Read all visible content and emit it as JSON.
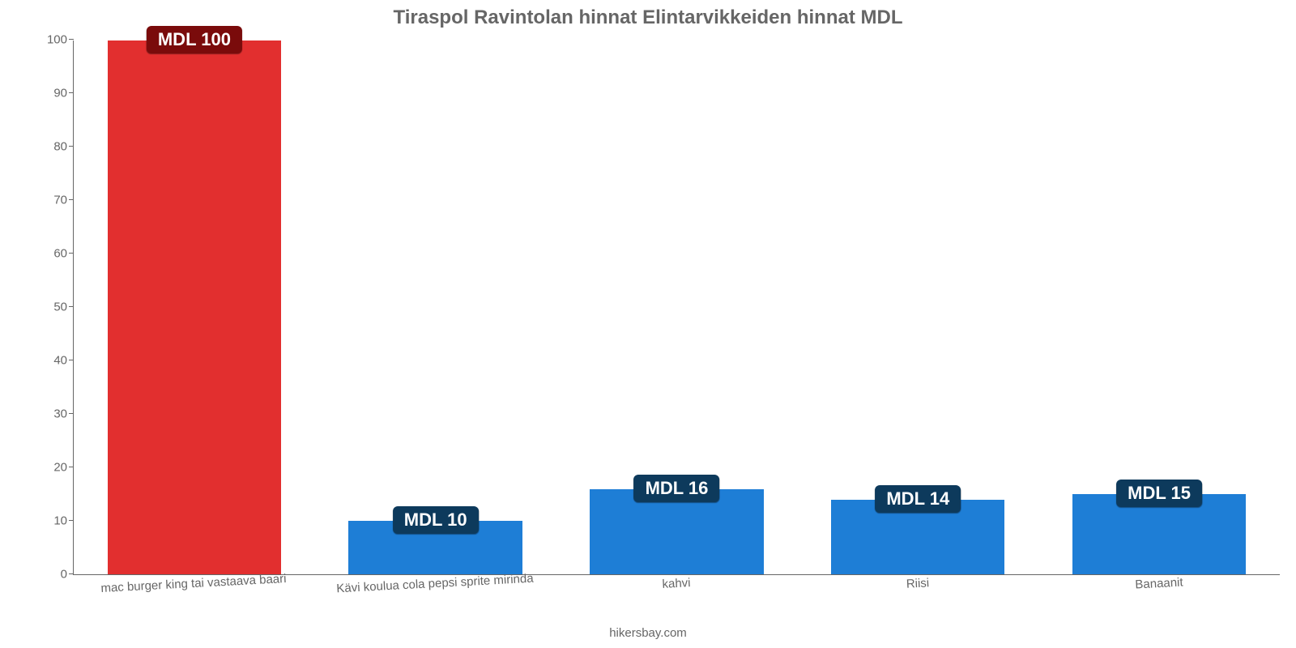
{
  "chart": {
    "type": "bar",
    "title": "Tiraspol Ravintolan hinnat Elintarvikkeiden hinnat MDL",
    "title_fontsize": 24,
    "title_color": "#666666",
    "background_color": "#ffffff",
    "axis_color": "#666666",
    "tick_label_color": "#666666",
    "tick_fontsize": 15,
    "ylim": [
      0,
      100
    ],
    "ytick_step": 10,
    "yticks": [
      0,
      10,
      20,
      30,
      40,
      50,
      60,
      70,
      80,
      90,
      100
    ],
    "bar_width_ratio": 0.72,
    "categories": [
      "mac burger king tai vastaava baari",
      "Kävi koulua cola pepsi sprite mirinda",
      "kahvi",
      "Riisi",
      "Banaanit"
    ],
    "values": [
      100,
      10,
      16,
      14,
      15
    ],
    "value_labels": [
      "MDL 100",
      "MDL 10",
      "MDL 16",
      "MDL 14",
      "MDL 15"
    ],
    "bar_colors": [
      "#e22f2f",
      "#1e7ed6",
      "#1e7ed6",
      "#1e7ed6",
      "#1e7ed6"
    ],
    "label_bg_colors": [
      "#7a0b0b",
      "#0d3a5c",
      "#0d3a5c",
      "#0d3a5c",
      "#0d3a5c"
    ],
    "label_text_color": "#ffffff",
    "label_fontsize": 22,
    "attribution": "hikersbay.com"
  }
}
